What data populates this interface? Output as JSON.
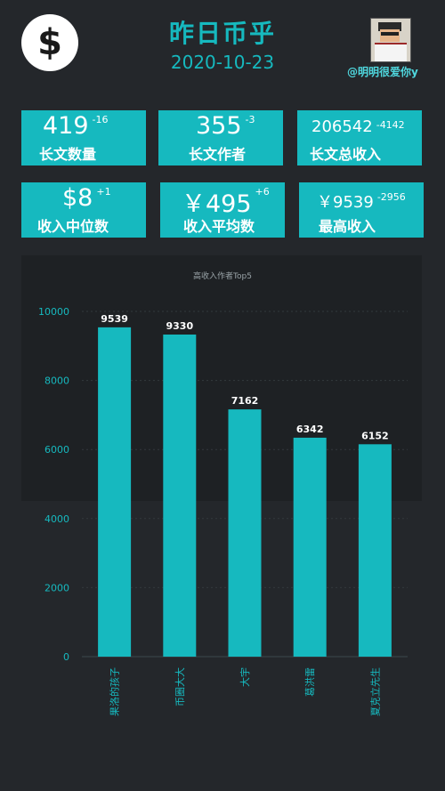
{
  "header": {
    "logo_symbol": "$",
    "title": "昨日币乎",
    "date": "2020-10-23",
    "username": "@明明很爱你y"
  },
  "stats": [
    {
      "value": "419",
      "delta": "-16",
      "label": "长文数量"
    },
    {
      "value": "355",
      "delta": "-3",
      "label": "长文作者"
    },
    {
      "value": "206542",
      "delta": "-4142",
      "label": "长文总收入"
    },
    {
      "value": "$8",
      "delta": "+1",
      "label": "收入中位数"
    },
    {
      "value": "￥495",
      "delta": "+6",
      "label": "收入平均数"
    },
    {
      "value": "￥9539",
      "delta": "-2956",
      "label": "最高收入"
    }
  ],
  "colors": {
    "accent": "#16b9bf",
    "background": "#24272b",
    "panel": "#1e2124"
  },
  "chart_data": {
    "type": "bar",
    "title": "高收入作者Top5",
    "categories": [
      "果洛的孩子",
      "币圈大大",
      "大宇",
      "葛洪雷",
      "夏克立先生"
    ],
    "values": [
      9539,
      9330,
      7162,
      6342,
      6152
    ],
    "yticks": [
      0,
      2000,
      4000,
      6000,
      8000,
      10000
    ],
    "ylim": [
      0,
      10000
    ],
    "xlabel": "",
    "ylabel": "",
    "grid": true
  }
}
